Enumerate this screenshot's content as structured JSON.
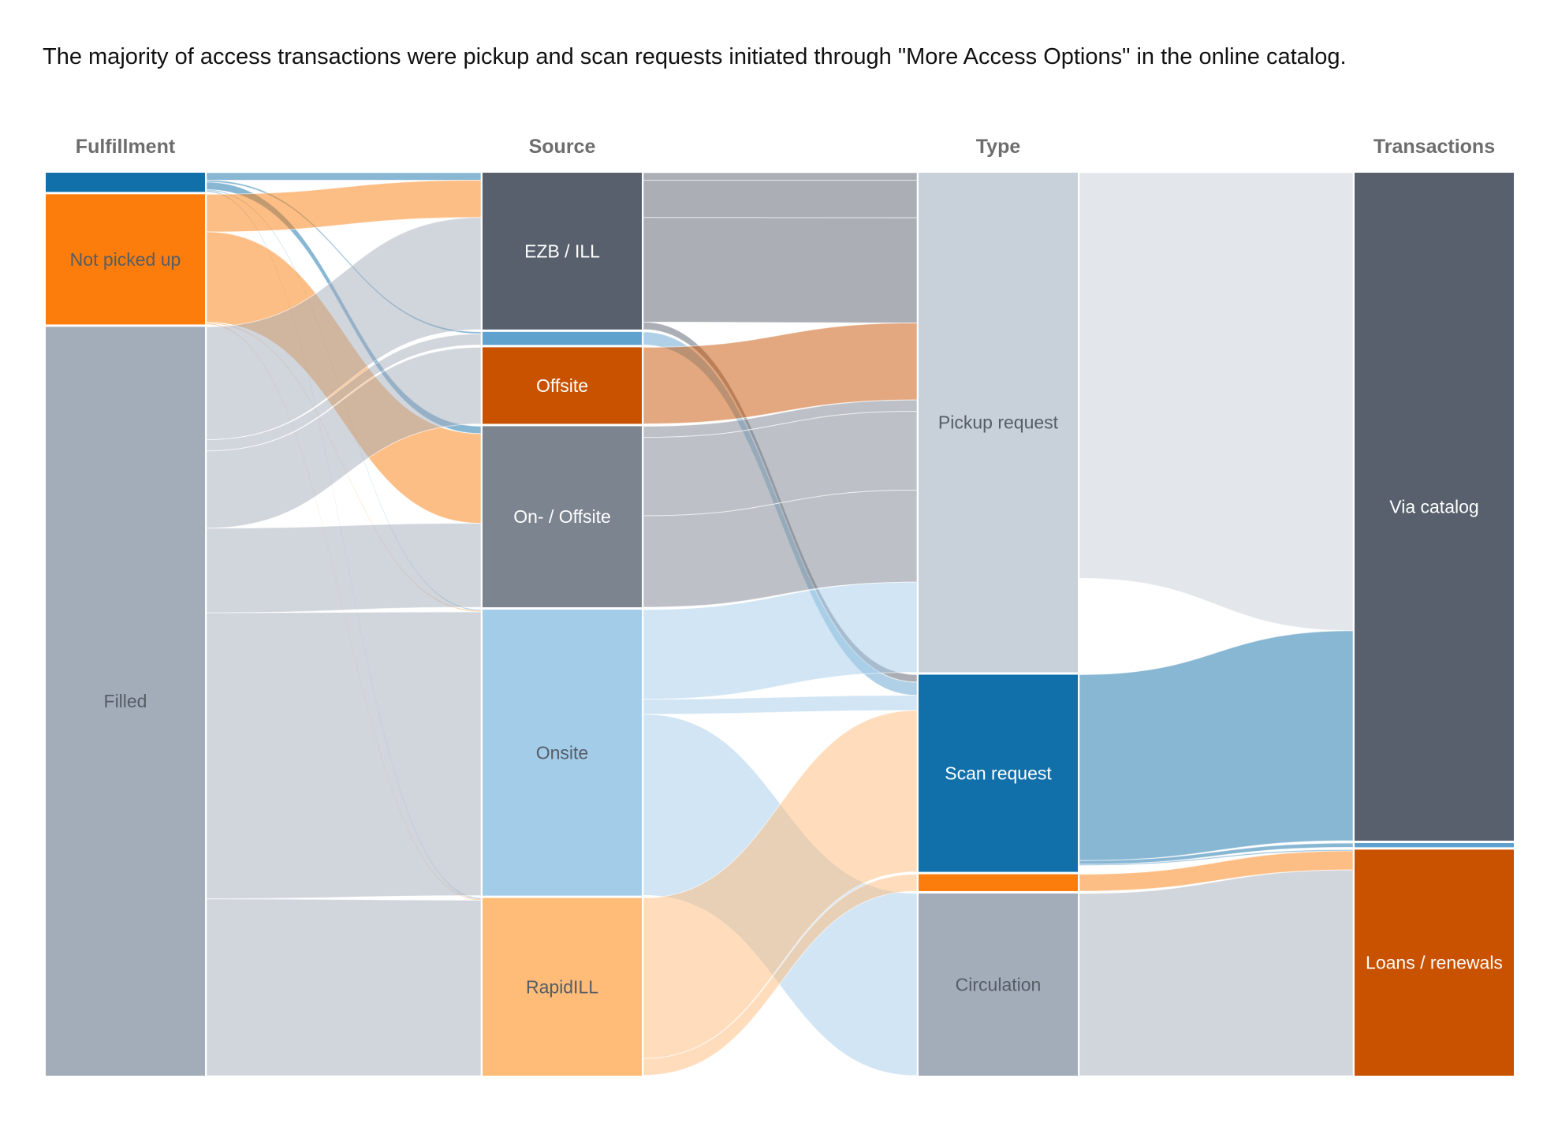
{
  "page": {
    "title": "The majority of access transactions were pickup and scan requests initiated through \"More Access Options\" in the online catalog."
  },
  "chart_data": {
    "type": "sankey",
    "columns": [
      {
        "key": "fulfillment",
        "header": "Fulfillment"
      },
      {
        "key": "source",
        "header": "Source"
      },
      {
        "key": "type",
        "header": "Type"
      },
      {
        "key": "transactions",
        "header": "Transactions"
      }
    ],
    "nodes": {
      "fulfillment": [
        {
          "id": "f_blue",
          "label": "",
          "color": "#1170aa"
        },
        {
          "id": "f_not",
          "label": "Not picked up",
          "color": "#fc7d0b"
        },
        {
          "id": "f_filled",
          "label": "Filled",
          "color": "#a3acb9"
        }
      ],
      "source": [
        {
          "id": "s_ezb",
          "label": "EZB / ILL",
          "color": "#57606c"
        },
        {
          "id": "s_blue",
          "label": "",
          "color": "#5fa2ce"
        },
        {
          "id": "s_offsite",
          "label": "Offsite",
          "color": "#c85200"
        },
        {
          "id": "s_onoff",
          "label": "On- / Offsite",
          "color": "#7b848f"
        },
        {
          "id": "s_onsite",
          "label": "Onsite",
          "color": "#a3cce9"
        },
        {
          "id": "s_rapid",
          "label": "RapidILL",
          "color": "#ffbc79"
        }
      ],
      "type": [
        {
          "id": "t_pickup",
          "label": "Pickup request",
          "color": "#c8d0d9"
        },
        {
          "id": "t_scan",
          "label": "Scan request",
          "color": "#1170aa"
        },
        {
          "id": "t_orange",
          "label": "",
          "color": "#fc7d0b"
        },
        {
          "id": "t_circ",
          "label": "Circulation",
          "color": "#a3acb9"
        }
      ],
      "transactions": [
        {
          "id": "x_catalog",
          "label": "Via catalog",
          "color": "#57606c"
        },
        {
          "id": "x_blue",
          "label": "",
          "color": "#5fa2ce"
        },
        {
          "id": "x_loans",
          "label": "Loans / renewals",
          "color": "#c85200"
        }
      ]
    },
    "links": [
      {
        "source": "f_blue",
        "target": "s_ezb",
        "value": 4
      },
      {
        "source": "f_blue",
        "target": "s_blue",
        "value": 1
      },
      {
        "source": "f_blue",
        "target": "s_onoff",
        "value": 4
      },
      {
        "source": "f_blue",
        "target": "s_onsite",
        "value": 0.6
      },
      {
        "source": "f_blue",
        "target": "s_rapid",
        "value": 0.6
      },
      {
        "source": "f_not",
        "target": "s_ezb",
        "value": 20
      },
      {
        "source": "f_not",
        "target": "s_onoff",
        "value": 48
      },
      {
        "source": "f_not",
        "target": "s_onsite",
        "value": 0.6
      },
      {
        "source": "f_not",
        "target": "s_rapid",
        "value": 0.6
      },
      {
        "source": "f_filled",
        "target": "s_ezb",
        "value": 60
      },
      {
        "source": "f_filled",
        "target": "s_blue",
        "value": 6
      },
      {
        "source": "f_filled",
        "target": "s_offsite",
        "value": 41
      },
      {
        "source": "f_filled",
        "target": "s_onoff",
        "value": 45
      },
      {
        "source": "f_filled",
        "target": "s_onsite",
        "value": 152
      },
      {
        "source": "f_filled",
        "target": "s_rapid",
        "value": 94
      },
      {
        "source": "s_ezb",
        "target": "t_pickup",
        "value": 4
      },
      {
        "source": "s_ezb",
        "target": "t_pickup",
        "value": 20
      },
      {
        "source": "s_ezb",
        "target": "t_pickup",
        "value": 56
      },
      {
        "source": "s_ezb",
        "target": "t_scan",
        "value": 4
      },
      {
        "source": "s_blue",
        "target": "t_scan",
        "value": 7
      },
      {
        "source": "s_offsite",
        "target": "t_pickup",
        "value": 41
      },
      {
        "source": "s_onoff",
        "target": "t_pickup",
        "value": 6
      },
      {
        "source": "s_onoff",
        "target": "t_pickup",
        "value": 42
      },
      {
        "source": "s_onoff",
        "target": "t_pickup",
        "value": 49
      },
      {
        "source": "s_onsite",
        "target": "t_pickup",
        "value": 48
      },
      {
        "source": "s_onsite",
        "target": "t_scan",
        "value": 8
      },
      {
        "source": "s_onsite",
        "target": "t_circ",
        "value": 97
      },
      {
        "source": "s_rapid",
        "target": "t_scan",
        "value": 86
      },
      {
        "source": "s_rapid",
        "target": "t_orange",
        "value": 9
      },
      {
        "source": "t_pickup",
        "target": "x_catalog",
        "value": 216
      },
      {
        "source": "t_scan",
        "target": "x_catalog",
        "value": 99
      },
      {
        "source": "t_scan",
        "target": "x_blue",
        "value": 2
      },
      {
        "source": "t_scan",
        "target": "x_loans",
        "value": 0.6
      },
      {
        "source": "t_orange",
        "target": "x_loans",
        "value": 9
      },
      {
        "source": "t_circ",
        "target": "x_loans",
        "value": 97
      }
    ]
  }
}
